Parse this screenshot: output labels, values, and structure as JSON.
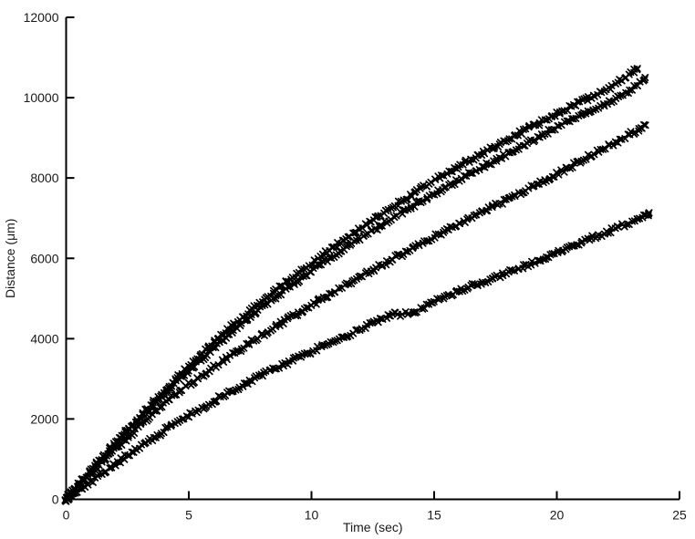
{
  "figure": {
    "background_color": "#ffffff",
    "axis_color": "#000000",
    "text_color": "#1a1a1a",
    "series_color": "#000000"
  },
  "chart_data": {
    "type": "line",
    "title": "",
    "xlabel": "Time (sec)",
    "ylabel": "Distance (μm)",
    "xlim": [
      0,
      25
    ],
    "ylim": [
      0,
      12000
    ],
    "x_ticks": [
      0,
      5,
      10,
      15,
      20,
      25
    ],
    "y_ticks": [
      0,
      2000,
      4000,
      6000,
      8000,
      10000,
      12000
    ],
    "grid": false,
    "legend": "none",
    "box": false,
    "marker": "x",
    "line_color": "#000000",
    "series": [
      {
        "name": "trace-upper-1",
        "end_value_um": 10700,
        "points": [
          [
            0,
            0
          ],
          [
            1,
            720
          ],
          [
            2,
            1400
          ],
          [
            3,
            2060
          ],
          [
            4,
            2700
          ],
          [
            5,
            3300
          ],
          [
            6,
            3890
          ],
          [
            7,
            4430
          ],
          [
            8,
            4940
          ],
          [
            9,
            5420
          ],
          [
            10,
            5880
          ],
          [
            11,
            6320
          ],
          [
            12,
            6740
          ],
          [
            13,
            7150
          ],
          [
            14,
            7550
          ],
          [
            15,
            7930
          ],
          [
            16,
            8290
          ],
          [
            17,
            8630
          ],
          [
            18,
            8960
          ],
          [
            19,
            9280
          ],
          [
            20,
            9590
          ],
          [
            21,
            9900
          ],
          [
            22,
            10200
          ],
          [
            23.3,
            10700
          ]
        ]
      },
      {
        "name": "trace-upper-2",
        "end_value_um": 10450,
        "points": [
          [
            0,
            0
          ],
          [
            2,
            1360
          ],
          [
            4,
            2620
          ],
          [
            6,
            3760
          ],
          [
            8,
            4790
          ],
          [
            10,
            5690
          ],
          [
            12,
            6500
          ],
          [
            14,
            7260
          ],
          [
            16,
            7950
          ],
          [
            18,
            8600
          ],
          [
            20,
            9260
          ],
          [
            21.5,
            9700
          ],
          [
            22.6,
            10060
          ],
          [
            23.6,
            10450
          ]
        ]
      },
      {
        "name": "trace-middle",
        "end_value_um": 9300,
        "points": [
          [
            0,
            0
          ],
          [
            2,
            1250
          ],
          [
            4,
            2380
          ],
          [
            6,
            3290
          ],
          [
            8,
            4090
          ],
          [
            10,
            4840
          ],
          [
            12,
            5540
          ],
          [
            14,
            6210
          ],
          [
            16,
            6850
          ],
          [
            18,
            7480
          ],
          [
            20,
            8100
          ],
          [
            21.8,
            8700
          ],
          [
            23.6,
            9300
          ]
        ]
      },
      {
        "name": "trace-lower",
        "end_value_um": 7130,
        "notch_plateau_um": 4600,
        "points": [
          [
            0,
            0
          ],
          [
            2,
            880
          ],
          [
            4,
            1700
          ],
          [
            6,
            2440
          ],
          [
            8,
            3100
          ],
          [
            10,
            3680
          ],
          [
            11.5,
            4090
          ],
          [
            12.9,
            4500
          ],
          [
            13.3,
            4600
          ],
          [
            14.1,
            4650
          ],
          [
            15.2,
            4980
          ],
          [
            16.2,
            5230
          ],
          [
            17.2,
            5460
          ],
          [
            19,
            5880
          ],
          [
            20.5,
            6280
          ],
          [
            22,
            6640
          ],
          [
            23.8,
            7130
          ]
        ]
      }
    ]
  }
}
